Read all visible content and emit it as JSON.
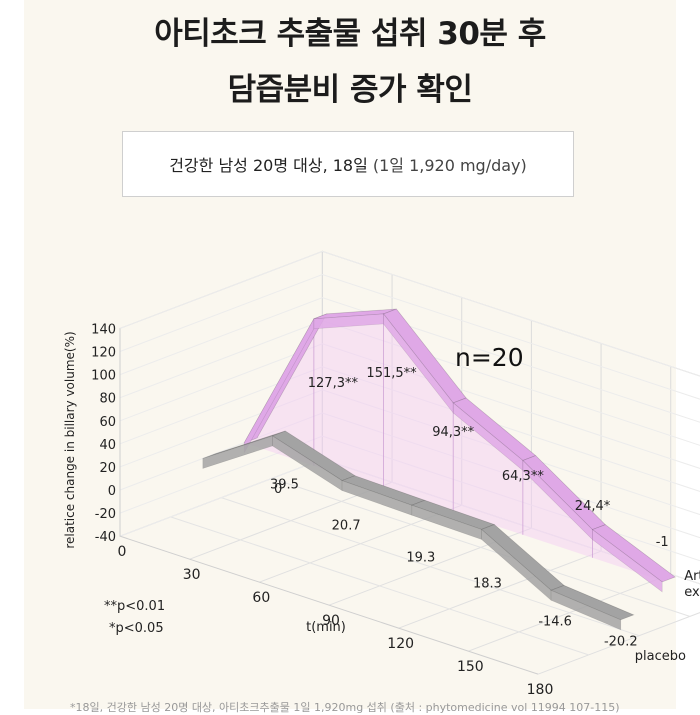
{
  "header": {
    "title_line1": "아티초크 추출물 섭취 30분 후",
    "title_line2": "담즙분비 증가 확인"
  },
  "info": {
    "main": "건강한 남성 20명 대상, 18일",
    "detail": "(1일 1,920 mg/day)"
  },
  "chart_data": {
    "type": "line",
    "chart_style": "3d",
    "ylabel": "relatice change in billary volume(%)",
    "xlabel": "t(min)",
    "y_ticks": [
      "140",
      "120",
      "100",
      "80",
      "60",
      "40",
      "20",
      "0",
      "-20",
      "-40"
    ],
    "ylim": [
      -40,
      140
    ],
    "x_ticks": [
      "0",
      "30",
      "60",
      "90",
      "120",
      "150",
      "180"
    ],
    "x": [
      0,
      30,
      60,
      90,
      120,
      150,
      180
    ],
    "annotation": "n=20",
    "significance": [
      "**p<0.01",
      "*p<0.05"
    ],
    "series": [
      {
        "name": "Artichoke extract",
        "name_lines": [
          "Artichoke",
          "extract"
        ],
        "color": "#dfa8e6",
        "values": [
          0,
          127.3,
          151.5,
          94.3,
          64.3,
          24.4,
          -1
        ],
        "labels": [
          "0",
          "127,3**",
          "151,5**",
          "94,3**",
          "64,3**",
          "24,4*",
          "-1"
        ]
      },
      {
        "name": "placebo",
        "name_lines": [
          "placebo"
        ],
        "color": "#a3a3a3",
        "values": [
          0,
          39.5,
          20.7,
          19.3,
          18.3,
          -14.6,
          -20.2
        ],
        "labels": [
          "",
          "39.5",
          "20.7",
          "19.3",
          "18.3",
          "-14.6",
          "-20.2"
        ]
      }
    ]
  },
  "footnote": "*18일, 건강한 남성 20명 대상, 아티초크추출물 1일 1,920mg 섭취 (출처 : phytomedicine vol 11994 107-115)"
}
